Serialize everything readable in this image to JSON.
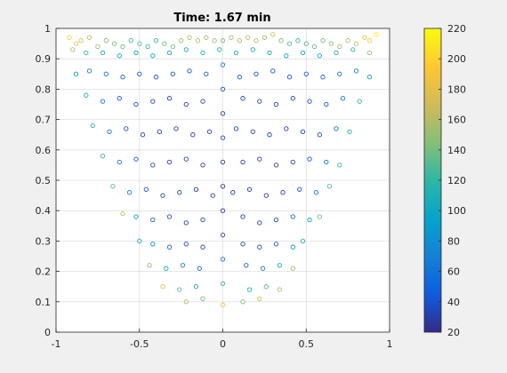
{
  "chart_data": {
    "type": "scatter",
    "title": "Time: 1.67 min",
    "xlim": [
      -1,
      1
    ],
    "ylim": [
      0,
      1
    ],
    "x_ticks": [
      -1,
      -0.5,
      0,
      0.5,
      1
    ],
    "x_tick_labels": [
      "-1",
      "-0.5",
      "0",
      "0.5",
      "1"
    ],
    "y_ticks": [
      0,
      0.1,
      0.2,
      0.3,
      0.4,
      0.5,
      0.6,
      0.7,
      0.8,
      0.9,
      1
    ],
    "y_tick_labels": [
      "0",
      "0.1",
      "0.2",
      "0.3",
      "0.4",
      "0.5",
      "0.6",
      "0.7",
      "0.8",
      "0.9",
      "1"
    ],
    "grid": true,
    "marker": "open-circle",
    "colorbar": {
      "colormap": "parula",
      "limits": [
        20,
        220
      ],
      "ticks": [
        20,
        40,
        60,
        80,
        100,
        120,
        140,
        160,
        180,
        200,
        220
      ],
      "tick_labels": [
        "20",
        "40",
        "60",
        "80",
        "100",
        "120",
        "140",
        "160",
        "180",
        "200",
        "220"
      ],
      "colormap_stops": [
        "#352a87",
        "#0f5cdd",
        "#1481d6",
        "#06a4ca",
        "#2eb7a4",
        "#87bf77",
        "#d1bb59",
        "#fec832",
        "#f9fb0e"
      ]
    },
    "series": [
      {
        "distribution": "parabolic region y >= x^2, denser in interior, color increasing toward edges",
        "points": [
          [
            -0.92,
            0.97,
            200
          ],
          [
            -0.88,
            0.95,
            185
          ],
          [
            -0.85,
            0.96,
            175
          ],
          [
            -0.8,
            0.97,
            165
          ],
          [
            -0.75,
            0.94,
            150
          ],
          [
            -0.7,
            0.96,
            145
          ],
          [
            -0.65,
            0.95,
            140
          ],
          [
            -0.6,
            0.94,
            135
          ],
          [
            -0.55,
            0.96,
            130
          ],
          [
            -0.5,
            0.95,
            130
          ],
          [
            -0.45,
            0.94,
            125
          ],
          [
            -0.4,
            0.96,
            125
          ],
          [
            -0.35,
            0.95,
            135
          ],
          [
            -0.3,
            0.94,
            140
          ],
          [
            -0.25,
            0.96,
            150
          ],
          [
            -0.2,
            0.97,
            160
          ],
          [
            -0.15,
            0.96,
            165
          ],
          [
            -0.1,
            0.97,
            160
          ],
          [
            -0.05,
            0.96,
            150
          ],
          [
            0.05,
            0.97,
            155
          ],
          [
            0.1,
            0.96,
            160
          ],
          [
            0.15,
            0.97,
            165
          ],
          [
            0.2,
            0.96,
            160
          ],
          [
            0.25,
            0.97,
            150
          ],
          [
            0.3,
            0.98,
            175
          ],
          [
            0.35,
            0.96,
            140
          ],
          [
            0.4,
            0.95,
            130
          ],
          [
            0.45,
            0.96,
            125
          ],
          [
            0.5,
            0.95,
            130
          ],
          [
            0.55,
            0.94,
            135
          ],
          [
            0.6,
            0.96,
            140
          ],
          [
            0.65,
            0.95,
            145
          ],
          [
            0.7,
            0.94,
            150
          ],
          [
            0.75,
            0.96,
            160
          ],
          [
            0.8,
            0.95,
            170
          ],
          [
            0.85,
            0.97,
            185
          ],
          [
            0.88,
            0.96,
            200
          ],
          [
            0.92,
            0.98,
            210
          ],
          [
            -0.9,
            0.93,
            160
          ],
          [
            -0.82,
            0.92,
            120
          ],
          [
            -0.72,
            0.92,
            110
          ],
          [
            -0.62,
            0.91,
            100
          ],
          [
            -0.52,
            0.92,
            95
          ],
          [
            -0.42,
            0.91,
            95
          ],
          [
            -0.32,
            0.92,
            100
          ],
          [
            -0.22,
            0.93,
            105
          ],
          [
            -0.12,
            0.92,
            110
          ],
          [
            -0.02,
            0.93,
            115
          ],
          [
            0.08,
            0.92,
            110
          ],
          [
            0.18,
            0.93,
            105
          ],
          [
            0.28,
            0.92,
            100
          ],
          [
            0.38,
            0.91,
            95
          ],
          [
            0.48,
            0.92,
            95
          ],
          [
            0.58,
            0.91,
            100
          ],
          [
            0.68,
            0.92,
            110
          ],
          [
            0.78,
            0.93,
            120
          ],
          [
            0.88,
            0.92,
            150
          ],
          [
            -0.88,
            0.85,
            90
          ],
          [
            -0.8,
            0.86,
            70
          ],
          [
            -0.7,
            0.85,
            60
          ],
          [
            -0.6,
            0.84,
            50
          ],
          [
            -0.5,
            0.85,
            45
          ],
          [
            -0.4,
            0.84,
            40
          ],
          [
            -0.3,
            0.85,
            40
          ],
          [
            -0.2,
            0.86,
            42
          ],
          [
            -0.1,
            0.85,
            45
          ],
          [
            0.1,
            0.84,
            45
          ],
          [
            0.2,
            0.85,
            42
          ],
          [
            0.3,
            0.86,
            40
          ],
          [
            0.4,
            0.84,
            40
          ],
          [
            0.5,
            0.85,
            45
          ],
          [
            0.6,
            0.84,
            50
          ],
          [
            0.7,
            0.85,
            60
          ],
          [
            0.8,
            0.86,
            70
          ],
          [
            0.88,
            0.84,
            100
          ],
          [
            -0.82,
            0.78,
            110
          ],
          [
            -0.72,
            0.76,
            65
          ],
          [
            -0.62,
            0.77,
            45
          ],
          [
            -0.52,
            0.75,
            38
          ],
          [
            -0.42,
            0.76,
            35
          ],
          [
            -0.32,
            0.77,
            32
          ],
          [
            -0.22,
            0.75,
            32
          ],
          [
            -0.12,
            0.76,
            35
          ],
          [
            0.12,
            0.77,
            35
          ],
          [
            0.22,
            0.76,
            32
          ],
          [
            0.32,
            0.75,
            32
          ],
          [
            0.42,
            0.77,
            35
          ],
          [
            0.52,
            0.76,
            38
          ],
          [
            0.62,
            0.75,
            45
          ],
          [
            0.72,
            0.77,
            65
          ],
          [
            0.82,
            0.76,
            120
          ],
          [
            -0.78,
            0.68,
            115
          ],
          [
            -0.68,
            0.66,
            60
          ],
          [
            -0.58,
            0.67,
            40
          ],
          [
            -0.48,
            0.65,
            35
          ],
          [
            -0.38,
            0.66,
            32
          ],
          [
            -0.28,
            0.67,
            30
          ],
          [
            -0.18,
            0.65,
            30
          ],
          [
            -0.08,
            0.66,
            32
          ],
          [
            0.08,
            0.67,
            32
          ],
          [
            0.18,
            0.66,
            30
          ],
          [
            0.28,
            0.65,
            30
          ],
          [
            0.38,
            0.67,
            32
          ],
          [
            0.48,
            0.66,
            35
          ],
          [
            0.58,
            0.65,
            40
          ],
          [
            0.68,
            0.67,
            60
          ],
          [
            0.76,
            0.66,
            110
          ],
          [
            -0.72,
            0.58,
            120
          ],
          [
            -0.62,
            0.56,
            65
          ],
          [
            -0.52,
            0.57,
            40
          ],
          [
            -0.42,
            0.55,
            34
          ],
          [
            -0.32,
            0.56,
            30
          ],
          [
            -0.22,
            0.57,
            30
          ],
          [
            -0.12,
            0.55,
            30
          ],
          [
            0.12,
            0.56,
            30
          ],
          [
            0.22,
            0.57,
            30
          ],
          [
            0.32,
            0.55,
            30
          ],
          [
            0.42,
            0.56,
            34
          ],
          [
            0.52,
            0.57,
            40
          ],
          [
            0.62,
            0.56,
            65
          ],
          [
            0.7,
            0.55,
            125
          ],
          [
            -0.66,
            0.48,
            130
          ],
          [
            -0.56,
            0.46,
            70
          ],
          [
            -0.46,
            0.47,
            42
          ],
          [
            -0.36,
            0.45,
            34
          ],
          [
            -0.26,
            0.46,
            30
          ],
          [
            -0.16,
            0.47,
            30
          ],
          [
            -0.06,
            0.45,
            30
          ],
          [
            0.06,
            0.46,
            30
          ],
          [
            0.16,
            0.47,
            30
          ],
          [
            0.26,
            0.45,
            30
          ],
          [
            0.36,
            0.46,
            34
          ],
          [
            0.46,
            0.47,
            42
          ],
          [
            0.56,
            0.46,
            70
          ],
          [
            0.64,
            0.48,
            130
          ],
          [
            -0.6,
            0.39,
            170
          ],
          [
            -0.52,
            0.38,
            90
          ],
          [
            -0.42,
            0.37,
            50
          ],
          [
            -0.32,
            0.38,
            36
          ],
          [
            -0.22,
            0.36,
            32
          ],
          [
            -0.12,
            0.37,
            32
          ],
          [
            0.12,
            0.38,
            32
          ],
          [
            0.22,
            0.36,
            32
          ],
          [
            0.32,
            0.37,
            36
          ],
          [
            0.42,
            0.38,
            50
          ],
          [
            0.52,
            0.37,
            95
          ],
          [
            0.58,
            0.38,
            140
          ],
          [
            -0.5,
            0.3,
            110
          ],
          [
            -0.42,
            0.29,
            80
          ],
          [
            -0.32,
            0.28,
            50
          ],
          [
            -0.22,
            0.29,
            38
          ],
          [
            -0.12,
            0.28,
            35
          ],
          [
            0.12,
            0.29,
            35
          ],
          [
            0.22,
            0.28,
            38
          ],
          [
            0.32,
            0.29,
            50
          ],
          [
            0.42,
            0.28,
            80
          ],
          [
            0.48,
            0.3,
            110
          ],
          [
            -0.44,
            0.22,
            150
          ],
          [
            -0.34,
            0.21,
            100
          ],
          [
            -0.24,
            0.22,
            70
          ],
          [
            -0.14,
            0.21,
            55
          ],
          [
            0.14,
            0.22,
            55
          ],
          [
            0.24,
            0.21,
            70
          ],
          [
            0.34,
            0.22,
            100
          ],
          [
            0.42,
            0.21,
            150
          ],
          [
            -0.36,
            0.15,
            180
          ],
          [
            -0.26,
            0.14,
            130
          ],
          [
            -0.16,
            0.15,
            110
          ],
          [
            0.16,
            0.14,
            110
          ],
          [
            0.26,
            0.15,
            130
          ],
          [
            0.34,
            0.14,
            160
          ],
          [
            -0.22,
            0.1,
            160
          ],
          [
            -0.12,
            0.11,
            140
          ],
          [
            0.0,
            0.09,
            190
          ],
          [
            0.12,
            0.1,
            150
          ],
          [
            0.22,
            0.11,
            170
          ],
          [
            0.0,
            0.96,
            140
          ],
          [
            0.0,
            0.88,
            60
          ],
          [
            0.0,
            0.8,
            40
          ],
          [
            0.0,
            0.72,
            35
          ],
          [
            0.0,
            0.64,
            32
          ],
          [
            0.0,
            0.56,
            30
          ],
          [
            0.0,
            0.48,
            30
          ],
          [
            0.0,
            0.4,
            32
          ],
          [
            0.0,
            0.32,
            36
          ],
          [
            0.0,
            0.24,
            60
          ],
          [
            0.0,
            0.16,
            120
          ]
        ]
      }
    ]
  }
}
